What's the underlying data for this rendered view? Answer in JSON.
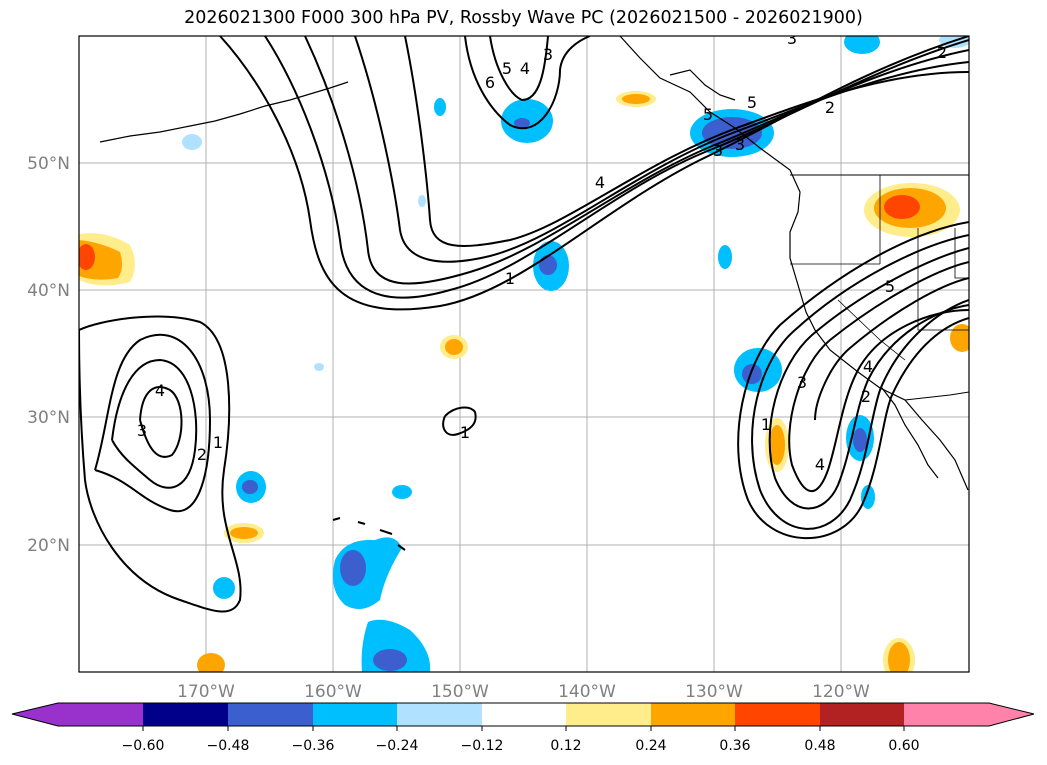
{
  "title": "2026021300 F000 300 hPa PV, Rossby Wave PC (2026021500 - 2026021900)",
  "map": {
    "projection": "lat-lon",
    "lon_range": [
      -180,
      -110
    ],
    "lat_range": [
      10,
      60
    ],
    "gridlines": true,
    "lon_labels": [
      "170°W",
      "160°W",
      "150°W",
      "140°W",
      "130°W",
      "120°W"
    ],
    "lat_labels": [
      "50°N",
      "40°N",
      "30°N",
      "20°N"
    ]
  },
  "colorbar": {
    "levels": [
      "−0.60",
      "−0.48",
      "−0.36",
      "−0.24",
      "−0.12",
      "0.12",
      "0.24",
      "0.36",
      "0.48",
      "0.60"
    ],
    "colors": [
      "#9932cc",
      "#00008b",
      "#3b5fcf",
      "#00bfff",
      "#b0e2ff",
      "#ffffff",
      "#ffec8b",
      "#ffa500",
      "#ff4500",
      "#b22222",
      "#ff82ab"
    ],
    "extend": "both"
  },
  "contour_labels": [
    "3",
    "5",
    "4",
    "6",
    "5",
    "3",
    "2",
    "4",
    "1",
    "5",
    "2",
    "4",
    "3",
    "1",
    "3",
    "2",
    "1",
    "4",
    "3",
    "1",
    "2",
    "3",
    "4",
    "5"
  ],
  "colors": {
    "land_outline": "#000000",
    "grid": "#b0b0b0",
    "contour": "#000000",
    "axis_text": "#808080"
  }
}
